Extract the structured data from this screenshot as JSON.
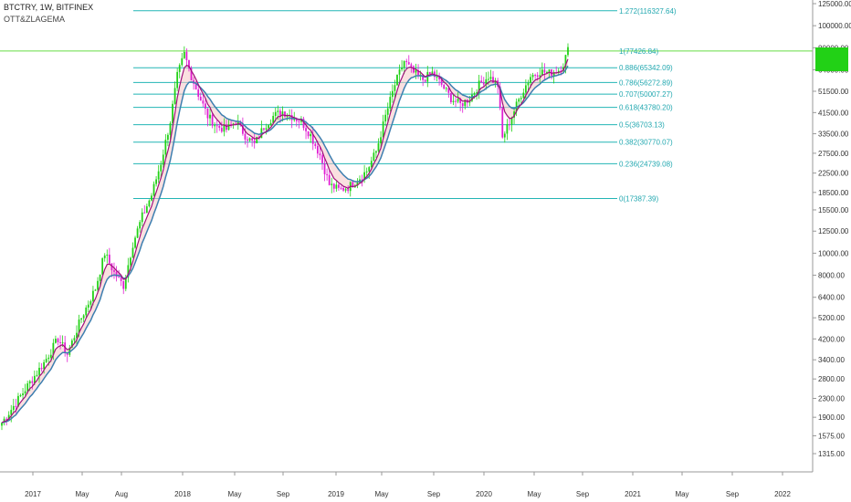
{
  "header": {
    "title": "BTCTRY, 1W, BITFINEX",
    "indicator": "OTT&ZLAGEMA"
  },
  "last_price_tag": "",
  "colors": {
    "bull": "#22d116",
    "bear": "#e11ed2",
    "fib_line": "#22b5b5",
    "fib_top_line": "#66dd44",
    "fib_label": "#22a8b0",
    "ott_line": "#a0107a",
    "ema_line": "#3d7fb0",
    "fill": "#f6c6c6",
    "axis_text": "#333333",
    "axis_line": "#999999"
  },
  "chart_data": {
    "type": "candlestick",
    "symbol": "BTCTRY",
    "interval": "1W",
    "exchange": "BITFINEX",
    "y_scale": "log",
    "ylim": [
      1250,
      140000
    ],
    "y_ticks": [
      "125000.00",
      "100000.00",
      "80000.00",
      "64000.00",
      "51500.00",
      "41500.00",
      "33500.00",
      "27500.00",
      "22500.00",
      "18500.00",
      "15500.00",
      "12500.00",
      "10000.00",
      "8000.00",
      "6400.00",
      "5200.00",
      "4200.00",
      "3400.00",
      "2800.00",
      "2300.00",
      "1900.00",
      "1575.00",
      "1315.00"
    ],
    "x_ticks": [
      "2017",
      "May",
      "Aug",
      "2018",
      "May",
      "Sep",
      "2019",
      "May",
      "Sep",
      "2020",
      "May",
      "Sep",
      "2021",
      "May",
      "Sep",
      "2022"
    ],
    "fib_levels": [
      {
        "ratio": "1.272",
        "value": "116327.64",
        "label": "1.272(116327.64)"
      },
      {
        "ratio": "1",
        "value": "77426.84",
        "label": "1(77426.84)"
      },
      {
        "ratio": "0.886",
        "value": "65342.09",
        "label": "0.886(65342.09)"
      },
      {
        "ratio": "0.786",
        "value": "56272.89",
        "label": "0.786(56272.89)"
      },
      {
        "ratio": "0.707",
        "value": "50007.27",
        "label": "0.707(50007.27)"
      },
      {
        "ratio": "0.618",
        "value": "43780.20",
        "label": "0.618(43780.20)"
      },
      {
        "ratio": "0.5",
        "value": "36703.13",
        "label": "0.5(36703.13)"
      },
      {
        "ratio": "0.382",
        "value": "30770.07",
        "label": "0.382(30770.07)"
      },
      {
        "ratio": "0.236",
        "value": "24739.08",
        "label": "0.236(24739.08)"
      },
      {
        "ratio": "0",
        "value": "17387.39",
        "label": "0(17387.39)"
      }
    ],
    "close_anchors": [
      [
        0,
        1800
      ],
      [
        6,
        2200
      ],
      [
        12,
        2700
      ],
      [
        18,
        3300
      ],
      [
        24,
        4200
      ],
      [
        28,
        3600
      ],
      [
        34,
        5200
      ],
      [
        40,
        7000
      ],
      [
        44,
        10000
      ],
      [
        48,
        8200
      ],
      [
        52,
        7200
      ],
      [
        56,
        11000
      ],
      [
        60,
        14500
      ],
      [
        64,
        18000
      ],
      [
        68,
        25000
      ],
      [
        72,
        38000
      ],
      [
        75,
        60000
      ],
      [
        78,
        75000
      ],
      [
        81,
        60000
      ],
      [
        84,
        50000
      ],
      [
        88,
        40000
      ],
      [
        92,
        36000
      ],
      [
        96,
        35000
      ],
      [
        100,
        38000
      ],
      [
        104,
        33000
      ],
      [
        108,
        30000
      ],
      [
        112,
        36000
      ],
      [
        116,
        40000
      ],
      [
        120,
        42000
      ],
      [
        124,
        40000
      ],
      [
        128,
        38000
      ],
      [
        132,
        33000
      ],
      [
        136,
        27000
      ],
      [
        140,
        20000
      ],
      [
        144,
        19000
      ],
      [
        148,
        19500
      ],
      [
        152,
        21000
      ],
      [
        156,
        23000
      ],
      [
        160,
        28000
      ],
      [
        164,
        40000
      ],
      [
        168,
        55000
      ],
      [
        172,
        70000
      ],
      [
        176,
        62000
      ],
      [
        180,
        58000
      ],
      [
        184,
        62000
      ],
      [
        188,
        55000
      ],
      [
        192,
        48000
      ],
      [
        196,
        45000
      ],
      [
        200,
        48000
      ],
      [
        204,
        55000
      ],
      [
        208,
        60000
      ],
      [
        212,
        55000
      ],
      [
        214,
        32000
      ],
      [
        218,
        40000
      ],
      [
        222,
        50000
      ],
      [
        226,
        60000
      ],
      [
        230,
        63000
      ],
      [
        234,
        62000
      ],
      [
        238,
        64000
      ],
      [
        240,
        68000
      ],
      [
        242,
        78000
      ]
    ]
  }
}
